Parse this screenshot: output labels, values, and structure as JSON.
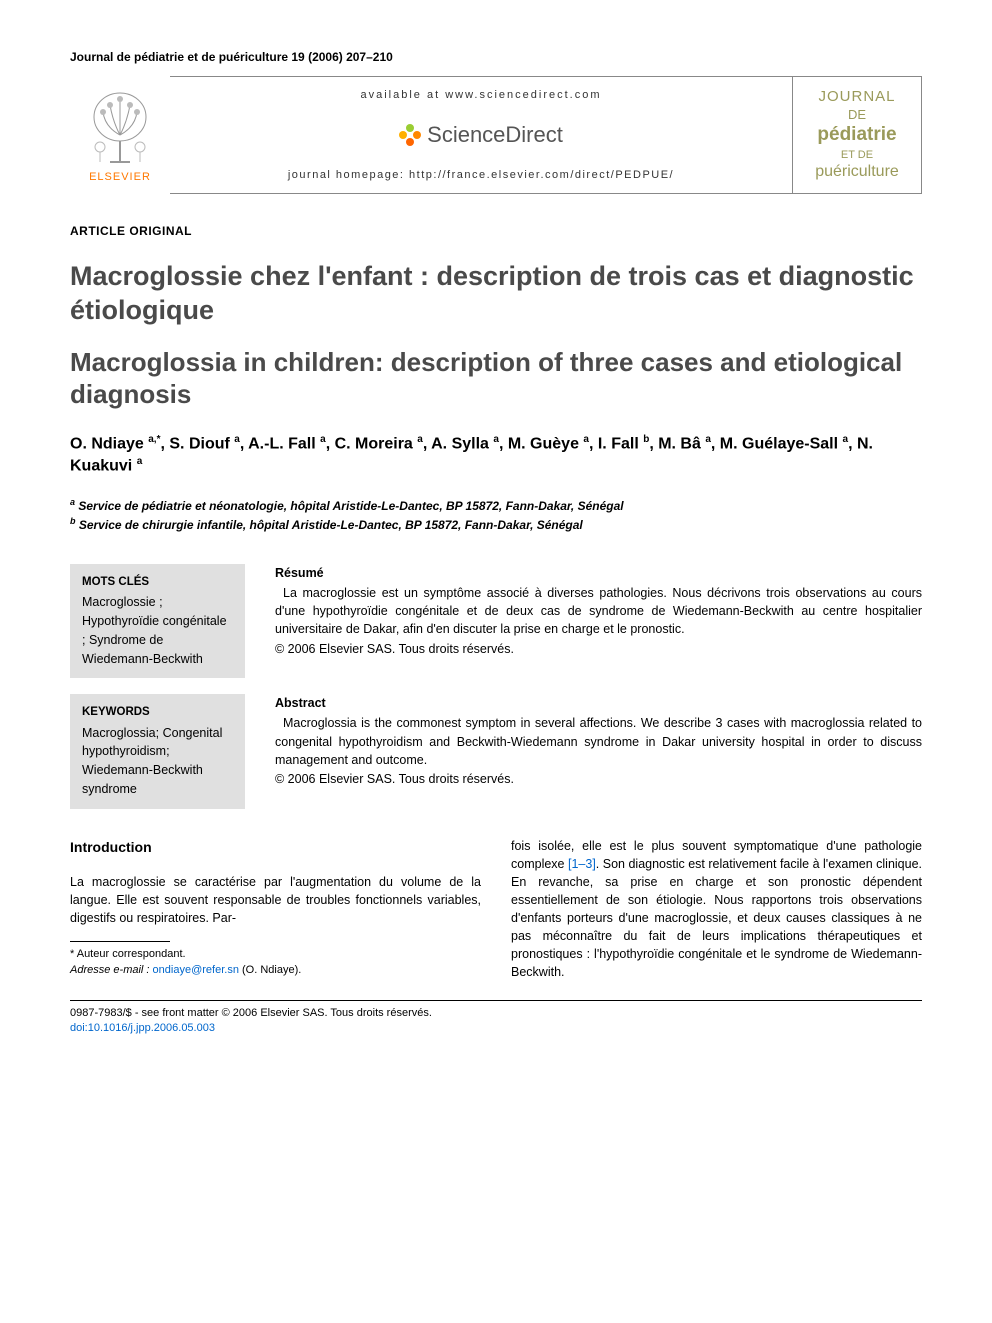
{
  "header": {
    "citation": "Journal de pédiatrie et de puériculture 19 (2006) 207–210",
    "elsevier_label": "ELSEVIER",
    "available_at": "available at www.sciencedirect.com",
    "sd_brand": "ScienceDirect",
    "homepage": "journal homepage: http://france.elsevier.com/direct/PEDPUE/",
    "cover": {
      "line1": "JOURNAL",
      "line2": "DE",
      "line3": "pédiatrie",
      "line4": "ET DE",
      "line5": "puériculture"
    }
  },
  "article_type": "ARTICLE ORIGINAL",
  "title_fr": "Macroglossie chez l'enfant : description de trois cas et diagnostic étiologique",
  "title_en": "Macroglossia in children: description of three cases and etiological diagnosis",
  "authors_html": "O. Ndiaye <sup>a,*</sup>, S. Diouf <sup>a</sup>, A.-L. Fall <sup>a</sup>, C. Moreira <sup>a</sup>, A. Sylla <sup>a</sup>, M. Guèye <sup>a</sup>, I. Fall <sup>b</sup>, M. Bâ <sup>a</sup>, M. Guélaye-Sall <sup>a</sup>, N. Kuakuvi <sup>a</sup>",
  "affiliations": [
    {
      "sup": "a",
      "text": "Service de pédiatrie et néonatologie, hôpital Aristide-Le-Dantec, BP 15872, Fann-Dakar, Sénégal"
    },
    {
      "sup": "b",
      "text": "Service de chirurgie infantile, hôpital Aristide-Le-Dantec, BP 15872, Fann-Dakar, Sénégal"
    }
  ],
  "mots_cles": {
    "title": "MOTS CLÉS",
    "body": "Macroglossie ; Hypothyroïdie congénitale ; Syndrome de Wiedemann-Beckwith"
  },
  "keywords": {
    "title": "KEYWORDS",
    "body": "Macroglossia; Congenital hypothyroidism; Wiedemann-Beckwith syndrome"
  },
  "resume": {
    "title": "Résumé",
    "body": "La macroglossie est un symptôme associé à diverses pathologies. Nous décrivons trois observations au cours d'une hypothyroïdie congénitale et de deux cas de syndrome de Wiedemann-Beckwith au centre hospitalier universitaire de Dakar, afin d'en discuter la prise en charge et le pronostic.",
    "copyright": "© 2006 Elsevier SAS. Tous droits réservés."
  },
  "abstract": {
    "title": "Abstract",
    "body": "Macroglossia is the commonest symptom in several affections. We describe 3 cases with macroglossia related to congenital hypothyroidism and Beckwith-Wiedemann syndrome in Dakar university hospital in order to discuss management and outcome.",
    "copyright": "© 2006 Elsevier SAS. Tous droits réservés."
  },
  "intro": {
    "heading": "Introduction",
    "col1": "La macroglossie se caractérise par l'augmentation du volume de la langue. Elle est souvent responsable de troubles fonctionnels variables, digestifs ou respiratoires. Par-",
    "col2_pre": "fois isolée, elle est le plus souvent symptomatique d'une pathologie complexe ",
    "col2_ref": "[1–3]",
    "col2_post": ". Son diagnostic est relativement facile à l'examen clinique. En revanche, sa prise en charge et son pronostic dépendent essentiellement de son étiologie. Nous rapportons trois observations d'enfants porteurs d'une macroglossie, et deux causes classiques à ne pas méconnaître du fait de leurs implications thérapeutiques et pronostiques : l'hypothyroïdie congénitale et le syndrome de Wiedemann-Beckwith."
  },
  "footnote": {
    "corresp": "* Auteur correspondant.",
    "email_label": "Adresse e-mail :",
    "email": "ondiaye@refer.sn",
    "email_owner": "(O. Ndiaye)."
  },
  "bottom": {
    "front_matter": "0987-7983/$ - see front matter © 2006 Elsevier SAS. Tous droits réservés.",
    "doi": "doi:10.1016/j.jpp.2006.05.003"
  }
}
